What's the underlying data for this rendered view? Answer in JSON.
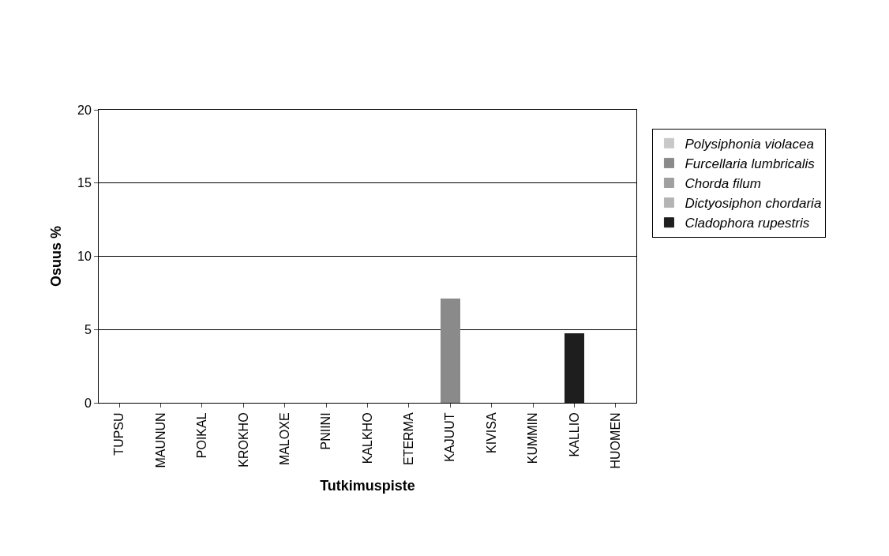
{
  "chart_data": {
    "type": "bar",
    "stacked": true,
    "xlabel": "Tutkimuspiste",
    "ylabel": "Osuus %",
    "categories": [
      "TUPSU",
      "MAUNUN",
      "POIKAL",
      "KROKHO",
      "MALOXE",
      "PNIINI",
      "KALKHO",
      "ETERMA",
      "KAJUUT",
      "KIVISA",
      "KUMMIN",
      "KALLIO",
      "HUOMEN"
    ],
    "series": [
      {
        "name": "Polysiphonia violacea",
        "color": "#c8c8c8",
        "values": [
          null,
          null,
          null,
          null,
          null,
          null,
          null,
          null,
          null,
          null,
          null,
          null,
          null
        ]
      },
      {
        "name": "Furcellaria lumbricalis",
        "color": "#8a8a8a",
        "values": [
          null,
          null,
          null,
          null,
          null,
          null,
          null,
          null,
          7.1,
          null,
          null,
          null,
          null
        ]
      },
      {
        "name": "Chorda filum",
        "color": "#a0a0a0",
        "values": [
          null,
          null,
          null,
          null,
          null,
          null,
          null,
          null,
          null,
          null,
          null,
          null,
          null
        ]
      },
      {
        "name": "Dictyosiphon chordaria",
        "color": "#b4b4b4",
        "values": [
          null,
          null,
          null,
          null,
          null,
          null,
          null,
          null,
          null,
          null,
          null,
          null,
          null
        ]
      },
      {
        "name": "Cladophora rupestris",
        "color": "#1e1e1e",
        "values": [
          null,
          null,
          null,
          null,
          null,
          null,
          null,
          null,
          null,
          null,
          null,
          4.7,
          null
        ]
      }
    ],
    "ylim": [
      0,
      20
    ],
    "yticks": [
      0,
      5,
      10,
      15,
      20
    ],
    "grid": "y",
    "legend": "right"
  }
}
